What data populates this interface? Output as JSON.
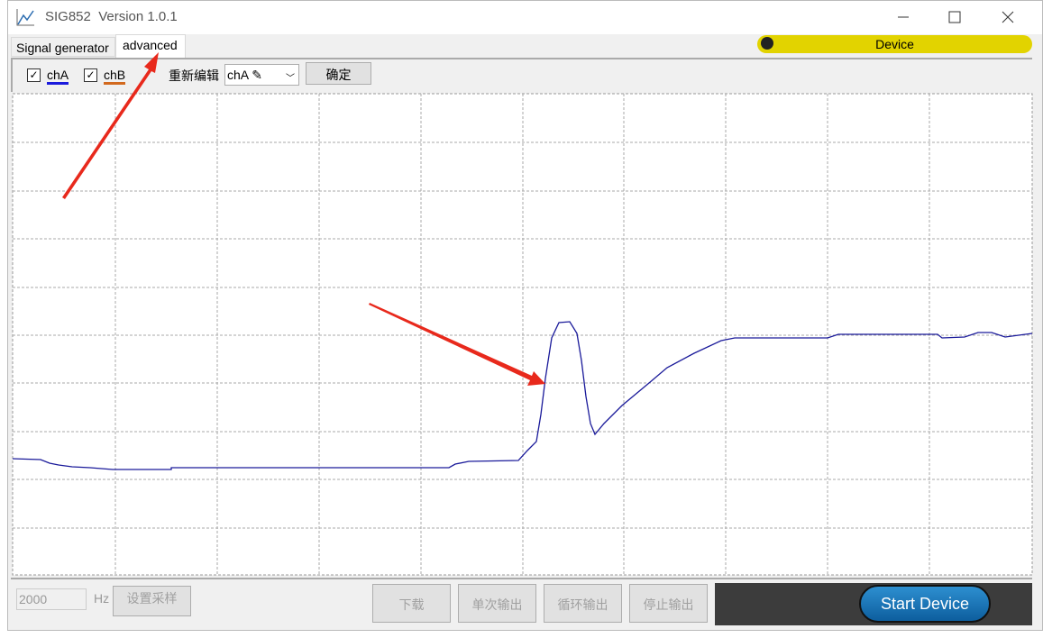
{
  "window": {
    "title": "SIG852  Version 1.0.1"
  },
  "tabs": [
    "Signal generator",
    "advanced"
  ],
  "device_button": "Device",
  "toolbar": {
    "channels": [
      "chA",
      "chB"
    ],
    "edit_label": "重新编辑",
    "edit_select": "chA",
    "confirm": "确定"
  },
  "bottom": {
    "rate": "2000",
    "unit": "Hz",
    "set_rate": "设置采样",
    "buttons": [
      "下载",
      "单次输出",
      "循环输出",
      "停止输出"
    ],
    "start": "Start Device"
  }
}
